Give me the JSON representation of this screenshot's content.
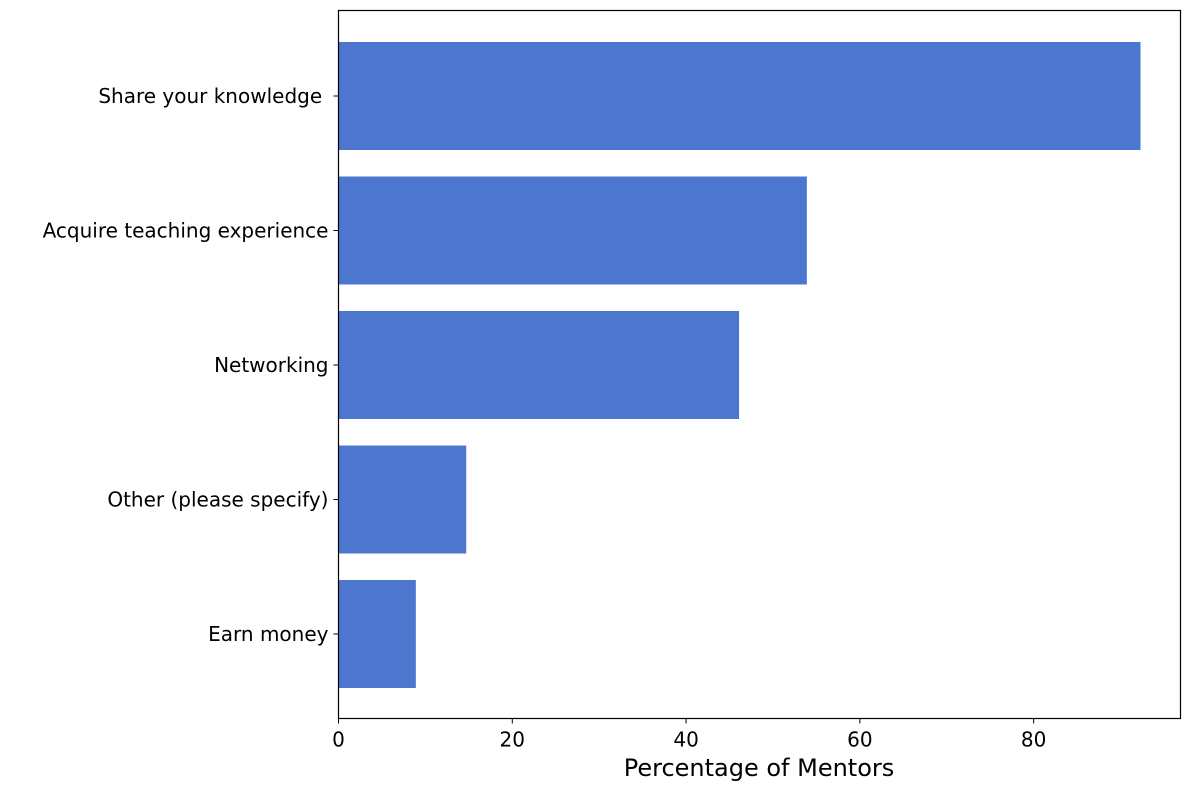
{
  "chart_data": {
    "type": "bar",
    "orientation": "horizontal",
    "categories": [
      "Share your knowledge ",
      "Acquire teaching experience",
      "Networking",
      "Other (please specify)",
      "Earn money"
    ],
    "values": [
      92.3,
      53.9,
      46.1,
      14.7,
      8.9
    ],
    "xlabel": "Percentage of Mentors",
    "ylabel": "",
    "title": "",
    "xlim": [
      0,
      96.9
    ],
    "xticks": [
      0,
      20,
      40,
      60,
      80
    ],
    "bar_color": "#4d77cf",
    "grid": false,
    "legend": "none"
  }
}
